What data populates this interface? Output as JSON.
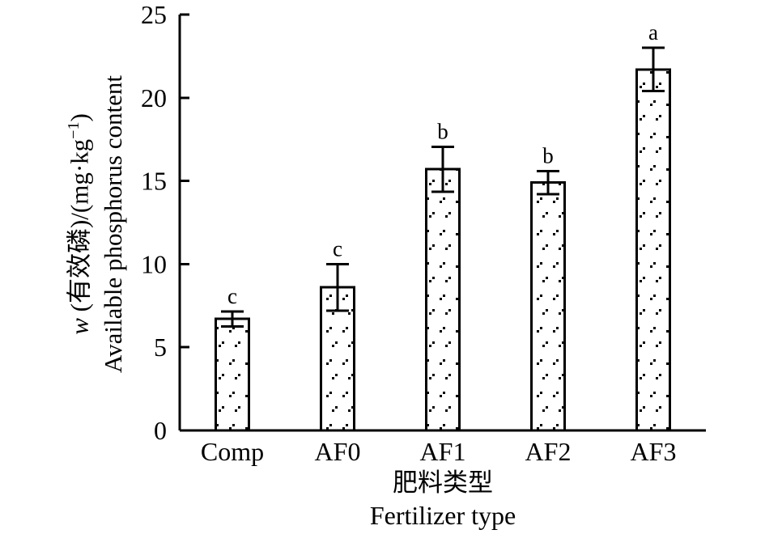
{
  "figure": {
    "background_color": "#ffffff",
    "ink_color": "#000000"
  },
  "chart_data": {
    "type": "bar",
    "title": "",
    "categories": [
      "Comp",
      "AF0",
      "AF1",
      "AF2",
      "AF3"
    ],
    "values": [
      6.7,
      8.6,
      15.7,
      14.9,
      21.7
    ],
    "error_bars": [
      0.45,
      1.4,
      1.35,
      0.7,
      1.3
    ],
    "sig_letters": [
      "c",
      "c",
      "b",
      "b",
      "a"
    ],
    "ylim": [
      0,
      25
    ],
    "yticks": [
      0,
      5,
      10,
      15,
      20,
      25
    ],
    "ytick_labels": [
      "0",
      "5",
      "10",
      "15",
      "20",
      "25"
    ],
    "ylabel": {
      "symbol": "w",
      "mid": " (有效磷)/(mg·kg",
      "sup": "−1",
      "close": ")",
      "line2": "Available phosphorus content"
    },
    "xlabel_cn": "肥料类型",
    "xlabel_en": "Fertilizer type",
    "grid": false,
    "legend": null,
    "bar_fill_pattern": "sparse-dots",
    "bar_outline_color": "#000000",
    "bar_fill_background": "#ffffff"
  }
}
